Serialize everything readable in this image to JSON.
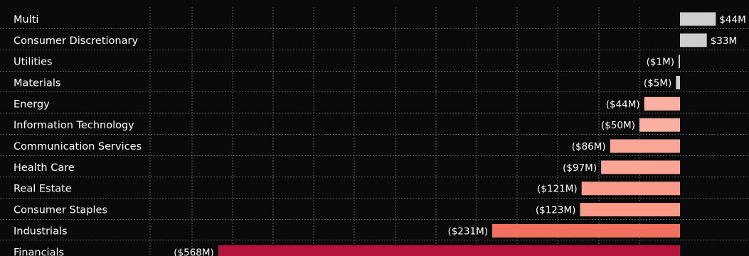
{
  "chart_data": {
    "type": "bar",
    "orientation": "horizontal",
    "unit": "$M",
    "categories": [
      "Multi",
      "Consumer Discretionary",
      "Utilities",
      "Materials",
      "Energy",
      "Information Technology",
      "Communication Services",
      "Health Care",
      "Real Estate",
      "Consumer Staples",
      "Industrials",
      "Financials"
    ],
    "values": [
      44,
      33,
      -1,
      -5,
      -44,
      -50,
      -86,
      -97,
      -121,
      -123,
      -231,
      -568
    ],
    "value_labels": [
      "$44M",
      "$33M",
      "($1M)",
      "($5M)",
      "($44M)",
      "($50M)",
      "($86M)",
      "($97M)",
      "($121M)",
      "($123M)",
      "($231M)",
      "($568M)"
    ],
    "colors": [
      "#cfcfcf",
      "#cfcfcf",
      "#cfcfcf",
      "#cfcfcf",
      "#fbb0a2",
      "#fbb0a2",
      "#fba597",
      "#fba597",
      "#fa9a88",
      "#fa9a88",
      "#f2705e",
      "#b5123c"
    ],
    "xlim": [
      -600,
      80
    ],
    "grid": true,
    "title": "",
    "xlabel": "",
    "ylabel": ""
  }
}
